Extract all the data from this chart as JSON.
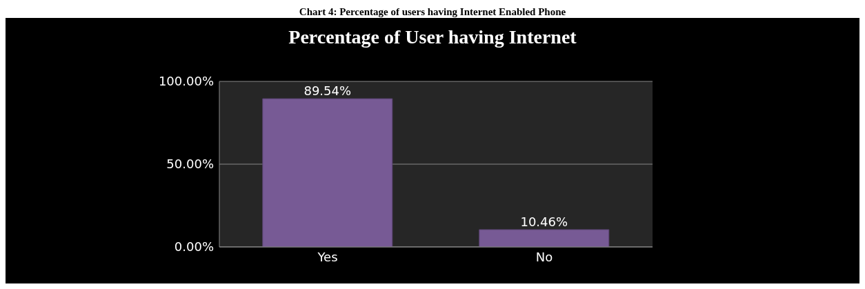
{
  "chart_data": {
    "type": "bar",
    "title": "Percentage of User having Internet",
    "annotations": [
      "Chart 4: Percentage of users having Internet Enabled Phone"
    ],
    "categories": [
      "Yes",
      "No"
    ],
    "values": [
      89.54,
      10.46
    ],
    "value_labels": [
      "89.54%",
      "10.46%"
    ],
    "color": "#775a95",
    "ylim": [
      0,
      100
    ],
    "yticks": [
      {
        "value": 0,
        "label": "0.00%"
      },
      {
        "value": 50,
        "label": "50.00%"
      },
      {
        "value": 100,
        "label": "100.00%"
      }
    ],
    "grid": "y"
  }
}
